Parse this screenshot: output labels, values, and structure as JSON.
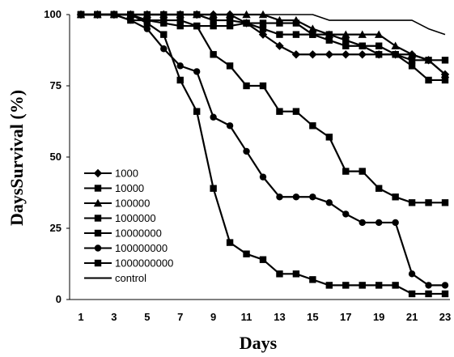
{
  "chart_data": {
    "type": "line",
    "title": "",
    "xlabel": "Days",
    "ylabel": "DaysSurvival  (%)",
    "xlim": [
      1,
      23
    ],
    "ylim": [
      0,
      100
    ],
    "x_ticks": [
      "1",
      "3",
      "5",
      "7",
      "9",
      "11",
      "13",
      "15",
      "17",
      "19",
      "21",
      "23"
    ],
    "y_ticks": [
      "0",
      "25",
      "50",
      "75",
      "100"
    ],
    "grid": false,
    "legend_position": "bottom-left",
    "x": [
      1,
      2,
      3,
      4,
      5,
      6,
      7,
      8,
      9,
      10,
      11,
      12,
      13,
      14,
      15,
      16,
      17,
      18,
      19,
      20,
      21,
      22,
      23
    ],
    "series": [
      {
        "name": "1000",
        "marker": "diamond",
        "values": [
          100,
          100,
          100,
          100,
          100,
          100,
          100,
          100,
          100,
          100,
          97,
          93,
          89,
          86,
          86,
          86,
          86,
          86,
          86,
          86,
          86,
          84,
          79
        ]
      },
      {
        "name": "10000",
        "marker": "square",
        "values": [
          100,
          100,
          100,
          100,
          100,
          100,
          100,
          100,
          98,
          98,
          97,
          95,
          93,
          93,
          93,
          91,
          89,
          89,
          86,
          86,
          84,
          84,
          84
        ]
      },
      {
        "name": "100000",
        "marker": "triangle",
        "values": [
          100,
          100,
          100,
          100,
          100,
          100,
          100,
          100,
          100,
          100,
          100,
          100,
          98,
          98,
          95,
          93,
          93,
          93,
          93,
          89,
          86,
          84,
          79
        ]
      },
      {
        "name": "1000000",
        "marker": "square",
        "values": [
          100,
          100,
          100,
          100,
          98,
          97,
          96,
          96,
          96,
          96,
          97,
          97,
          97,
          97,
          93,
          93,
          91,
          89,
          89,
          86,
          82,
          77,
          77
        ]
      },
      {
        "name": "10000000",
        "marker": "square",
        "values": [
          100,
          100,
          100,
          98,
          98,
          98,
          98,
          96,
          86,
          82,
          75,
          75,
          66,
          66,
          61,
          57,
          45,
          45,
          39,
          36,
          34,
          34,
          34
        ]
      },
      {
        "name": "100000000",
        "marker": "circle",
        "values": [
          100,
          100,
          100,
          98,
          95,
          88,
          82,
          80,
          64,
          61,
          52,
          43,
          36,
          36,
          36,
          34,
          30,
          27,
          27,
          27,
          9,
          5,
          5
        ]
      },
      {
        "name": "1000000000",
        "marker": "square",
        "values": [
          100,
          100,
          100,
          100,
          97,
          93,
          77,
          66,
          39,
          20,
          16,
          14,
          9,
          9,
          7,
          5,
          5,
          5,
          5,
          5,
          2,
          2,
          2
        ]
      },
      {
        "name": "control",
        "marker": "none",
        "values": [
          100,
          100,
          100,
          100,
          100,
          100,
          100,
          100,
          100,
          100,
          100,
          100,
          100,
          100,
          100,
          98,
          98,
          98,
          98,
          98,
          98,
          95,
          93
        ]
      }
    ]
  }
}
